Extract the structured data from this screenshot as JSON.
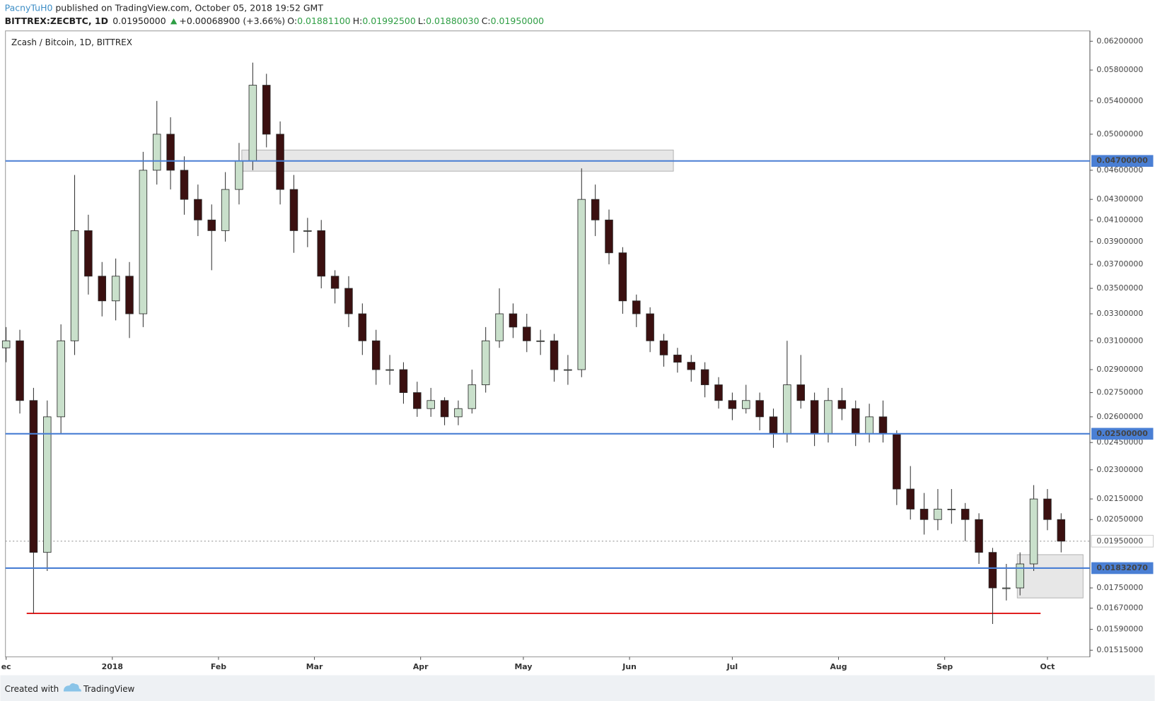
{
  "header": {
    "author": "PacnyTuH0",
    "published": " published on TradingView.com, October 05, 2018 19:52 GMT",
    "symbol": "BITTREX:ZECBTC, 1D",
    "last": "0.01950000",
    "change": "+0.00068900 (+3.66%)",
    "ohlc": [
      {
        "label": "O:",
        "value": "0.01881100"
      },
      {
        "label": "H:",
        "value": "0.01992500"
      },
      {
        "label": "L:",
        "value": "0.01880030"
      },
      {
        "label": "C:",
        "value": "0.01950000"
      }
    ]
  },
  "footer": {
    "text": "Created with",
    "brand": "TradingView"
  },
  "chart_data": {
    "type": "candlestick",
    "title": "Zcash / Bitcoin, 1D, BITTREX",
    "log_scale": true,
    "grid": false,
    "up_color": "#c9e0cb",
    "down_color": "#3b1010",
    "wick_color": "#333333",
    "open": [
      0.0305,
      0.031,
      0.027,
      0.019,
      0.026,
      0.031,
      0.04,
      0.036,
      0.034,
      0.036,
      0.033,
      0.046,
      0.05,
      0.046,
      0.043,
      0.041,
      0.04,
      0.044,
      0.047,
      0.056,
      0.05,
      0.044,
      0.04,
      0.04,
      0.036,
      0.035,
      0.033,
      0.031,
      0.029,
      0.029,
      0.0275,
      0.0265,
      0.027,
      0.026,
      0.0265,
      0.028,
      0.031,
      0.033,
      0.032,
      0.031,
      0.031,
      0.029,
      0.029,
      0.043,
      0.041,
      0.038,
      0.034,
      0.033,
      0.031,
      0.03,
      0.0295,
      0.029,
      0.028,
      0.027,
      0.0265,
      0.027,
      0.026,
      0.025,
      0.028,
      0.027,
      0.025,
      0.027,
      0.0265,
      0.025,
      0.026,
      0.025,
      0.022,
      0.021,
      0.0205,
      0.021,
      0.021,
      0.0205,
      0.019,
      0.0175,
      0.0175,
      0.0185,
      0.0215,
      0.0205
    ],
    "high": [
      0.032,
      0.0318,
      0.0278,
      0.027,
      0.0322,
      0.0455,
      0.0415,
      0.0372,
      0.0375,
      0.0372,
      0.048,
      0.054,
      0.052,
      0.0475,
      0.0445,
      0.0425,
      0.0458,
      0.049,
      0.059,
      0.0575,
      0.0515,
      0.0455,
      0.0412,
      0.041,
      0.0365,
      0.036,
      0.0338,
      0.0318,
      0.03,
      0.0295,
      0.0282,
      0.0278,
      0.0272,
      0.027,
      0.029,
      0.032,
      0.035,
      0.0338,
      0.033,
      0.0318,
      0.0315,
      0.03,
      0.0462,
      0.0445,
      0.042,
      0.0385,
      0.0345,
      0.0335,
      0.0315,
      0.0305,
      0.03,
      0.0295,
      0.0285,
      0.0275,
      0.028,
      0.0275,
      0.0265,
      0.031,
      0.03,
      0.0275,
      0.0278,
      0.0278,
      0.027,
      0.0268,
      0.027,
      0.0252,
      0.0232,
      0.0218,
      0.022,
      0.022,
      0.0213,
      0.0208,
      0.0192,
      0.0185,
      0.019,
      0.0222,
      0.022,
      0.0208
    ],
    "low": [
      0.0295,
      0.0262,
      0.0165,
      0.0182,
      0.025,
      0.03,
      0.0345,
      0.0328,
      0.0325,
      0.0312,
      0.032,
      0.0445,
      0.044,
      0.0415,
      0.0395,
      0.0365,
      0.039,
      0.0425,
      0.046,
      0.0485,
      0.0425,
      0.038,
      0.0385,
      0.035,
      0.0338,
      0.032,
      0.03,
      0.028,
      0.028,
      0.0268,
      0.026,
      0.026,
      0.0255,
      0.0255,
      0.0262,
      0.0275,
      0.0305,
      0.0312,
      0.0302,
      0.03,
      0.0282,
      0.028,
      0.0285,
      0.0395,
      0.037,
      0.033,
      0.032,
      0.0302,
      0.0292,
      0.0288,
      0.0282,
      0.0272,
      0.0265,
      0.0258,
      0.0262,
      0.0252,
      0.0242,
      0.0245,
      0.0265,
      0.0243,
      0.0245,
      0.0258,
      0.0243,
      0.0245,
      0.0245,
      0.0212,
      0.0205,
      0.0198,
      0.02,
      0.0203,
      0.0195,
      0.0185,
      0.0161,
      0.017,
      0.0172,
      0.0182,
      0.02,
      0.019
    ],
    "close": [
      0.031,
      0.027,
      0.019,
      0.026,
      0.031,
      0.04,
      0.036,
      0.034,
      0.036,
      0.033,
      0.046,
      0.05,
      0.046,
      0.043,
      0.041,
      0.04,
      0.044,
      0.047,
      0.056,
      0.05,
      0.044,
      0.04,
      0.04,
      0.036,
      0.035,
      0.033,
      0.031,
      0.029,
      0.029,
      0.0275,
      0.0265,
      0.027,
      0.026,
      0.0265,
      0.028,
      0.031,
      0.033,
      0.032,
      0.031,
      0.031,
      0.029,
      0.029,
      0.043,
      0.041,
      0.038,
      0.034,
      0.033,
      0.031,
      0.03,
      0.0295,
      0.029,
      0.028,
      0.027,
      0.0265,
      0.027,
      0.026,
      0.025,
      0.028,
      0.027,
      0.025,
      0.027,
      0.0265,
      0.025,
      0.026,
      0.025,
      0.022,
      0.021,
      0.0205,
      0.021,
      0.021,
      0.0205,
      0.019,
      0.0175,
      0.0175,
      0.0185,
      0.0215,
      0.0205,
      0.0195
    ],
    "xlim": [
      -0.05,
      79.1
    ],
    "xticks": [
      {
        "value": 0,
        "label": "ec"
      },
      {
        "value": 7.75,
        "label": "2018"
      },
      {
        "value": 15.5,
        "label": "Feb"
      },
      {
        "value": 22.5,
        "label": "Mar"
      },
      {
        "value": 30.25,
        "label": "Apr"
      },
      {
        "value": 37.75,
        "label": "May"
      },
      {
        "value": 45.5,
        "label": "Jun"
      },
      {
        "value": 53,
        "label": "Jul"
      },
      {
        "value": 60.75,
        "label": "Aug"
      },
      {
        "value": 68.5,
        "label": "Sep"
      },
      {
        "value": 76,
        "label": "Oct"
      }
    ],
    "ylim": [
      0.01492,
      0.0635
    ],
    "yticks": [
      {
        "value": 0.062,
        "label": "0.06200000"
      },
      {
        "value": 0.058,
        "label": "0.05800000"
      },
      {
        "value": 0.054,
        "label": "0.05400000"
      },
      {
        "value": 0.05,
        "label": "0.05000000"
      },
      {
        "value": 0.046,
        "label": "0.04600000"
      },
      {
        "value": 0.043,
        "label": "0.04300000"
      },
      {
        "value": 0.041,
        "label": "0.04100000"
      },
      {
        "value": 0.039,
        "label": "0.03900000"
      },
      {
        "value": 0.037,
        "label": "0.03700000"
      },
      {
        "value": 0.035,
        "label": "0.03500000"
      },
      {
        "value": 0.033,
        "label": "0.03300000"
      },
      {
        "value": 0.031,
        "label": "0.03100000"
      },
      {
        "value": 0.029,
        "label": "0.02900000"
      },
      {
        "value": 0.0275,
        "label": "0.02750000"
      },
      {
        "value": 0.026,
        "label": "0.02600000"
      },
      {
        "value": 0.0245,
        "label": "0.02450000"
      },
      {
        "value": 0.023,
        "label": "0.02300000"
      },
      {
        "value": 0.0215,
        "label": "0.02150000"
      },
      {
        "value": 0.0205,
        "label": "0.02050000"
      },
      {
        "value": 0.0175,
        "label": "0.01750000"
      },
      {
        "value": 0.0167,
        "label": "0.01670000"
      },
      {
        "value": 0.0159,
        "label": "0.01590000"
      },
      {
        "value": 0.01515,
        "label": "0.01515000"
      }
    ],
    "levels": [
      {
        "value": 0.047,
        "label": "0.04700000",
        "color": "#4a7fd4"
      },
      {
        "value": 0.025,
        "label": "0.02500000",
        "color": "#4a7fd4"
      },
      {
        "value": 0.0183207,
        "label": "0.01832070",
        "color": "#4a7fd4"
      }
    ],
    "last_price": {
      "value": 0.0195,
      "label": "0.01950000"
    },
    "support": {
      "value": 0.0165,
      "start": 1.5,
      "end": 75.5,
      "color": "#e02020"
    },
    "zones": [
      {
        "low": 0.0459,
        "high": 0.0482,
        "start": 17.2,
        "end": 48.7
      },
      {
        "low": 0.0171,
        "high": 0.0189,
        "start": 73.8,
        "end": 78.6
      }
    ]
  }
}
